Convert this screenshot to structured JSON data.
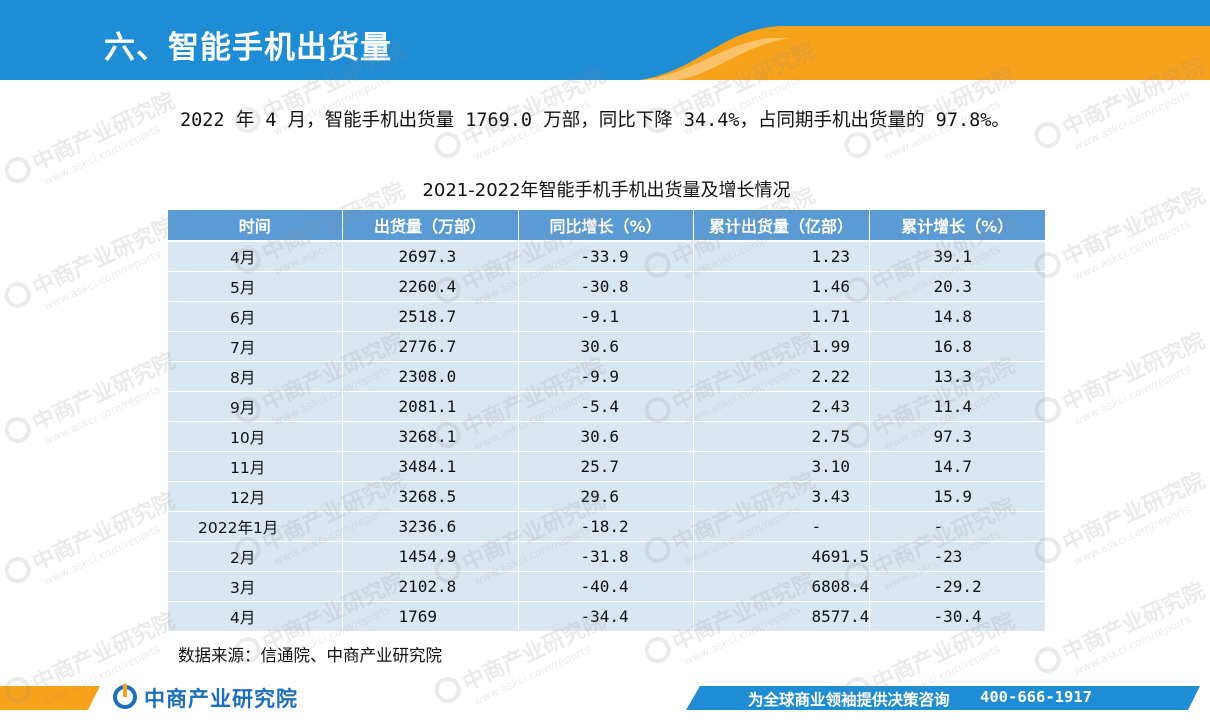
{
  "header": {
    "title": "六、智能手机出货量"
  },
  "summary_text": "2022 年 4 月，智能手机出货量 1769.0 万部，同比下降 34.4%，占同期手机出货量的 97.8%。",
  "table": {
    "caption": "2021-2022年智能手机手机出货量及增长情况",
    "columns": [
      "时间",
      "出货量（万部）",
      "同比增长（%）",
      "累计出货量（亿部）",
      "累计增长（%）"
    ],
    "rows": [
      [
        "4月",
        "2697.3",
        "-33.9",
        "1.23",
        "39.1"
      ],
      [
        "5月",
        "2260.4",
        "-30.8",
        "1.46",
        "20.3"
      ],
      [
        "6月",
        "2518.7",
        "-9.1",
        "1.71",
        "14.8"
      ],
      [
        "7月",
        "2776.7",
        "30.6",
        "1.99",
        "16.8"
      ],
      [
        "8月",
        "2308.0",
        "-9.9",
        "2.22",
        "13.3"
      ],
      [
        "9月",
        "2081.1",
        "-5.4",
        "2.43",
        "11.4"
      ],
      [
        "10月",
        "3268.1",
        "30.6",
        "2.75",
        "97.3"
      ],
      [
        "11月",
        "3484.1",
        "25.7",
        "3.10",
        "14.7"
      ],
      [
        "12月",
        "3268.5",
        "29.6",
        "3.43",
        "15.9"
      ],
      [
        "2022年1月",
        "3236.6",
        "-18.2",
        "-",
        "-"
      ],
      [
        "2月",
        "1454.9",
        "-31.8",
        "4691.5",
        "-23"
      ],
      [
        "3月",
        "2102.8",
        "-40.4",
        "6808.4",
        "-29.2"
      ],
      [
        "4月",
        "1769",
        "-34.4",
        "8577.4",
        "-30.4"
      ]
    ]
  },
  "source_text": "数据来源：信通院、中商产业研究院",
  "footer": {
    "logo_text": "中商产业研究院",
    "slogan": "为全球商业领袖提供决策咨询",
    "phone": "400-666-1917"
  },
  "watermark": {
    "text": "中商产业研究院",
    "url": "www.askci.com/reports"
  },
  "colors": {
    "header_blue": "#1f8dd6",
    "header_orange": "#f7a21b",
    "table_header": "#5b9bd5",
    "table_cell": "#d9e7f3",
    "brand_blue": "#1e6fc0"
  }
}
